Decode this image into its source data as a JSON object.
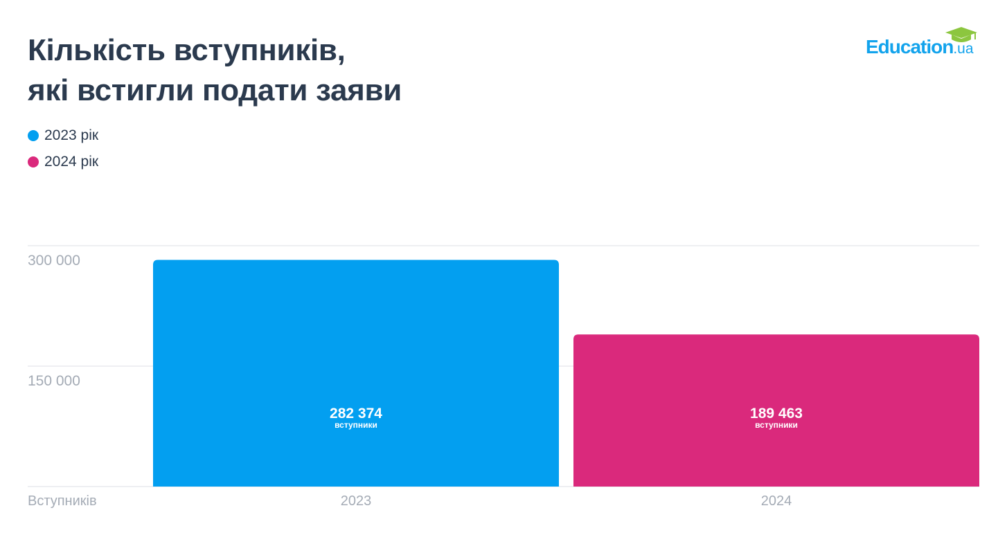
{
  "title_lines": [
    "Кількість вступників,",
    "які встигли подати заяви"
  ],
  "logo": {
    "main": "Education",
    "suffix": ".ua"
  },
  "colors": {
    "s2023": "#039ff0",
    "s2024": "#da297c",
    "text": "#2b3a4e",
    "muted": "#a4abb5",
    "grid": "#dcdfe4",
    "cap": "#8cc63f"
  },
  "chart_data": {
    "type": "bar",
    "categories": [
      "2023",
      "2024"
    ],
    "values": [
      282374,
      189463
    ],
    "value_labels": [
      "282 374",
      "189 463"
    ],
    "value_sublabel": "вступники",
    "legend": [
      "2023 рік",
      "2024 рік"
    ],
    "xlabel": "Вступників",
    "yticks": [
      0,
      150000,
      300000
    ],
    "ytick_labels": [
      "",
      "150 000",
      "300 000"
    ],
    "ylim": [
      0,
      300000
    ],
    "grid": true,
    "legend_position": "top-left"
  }
}
